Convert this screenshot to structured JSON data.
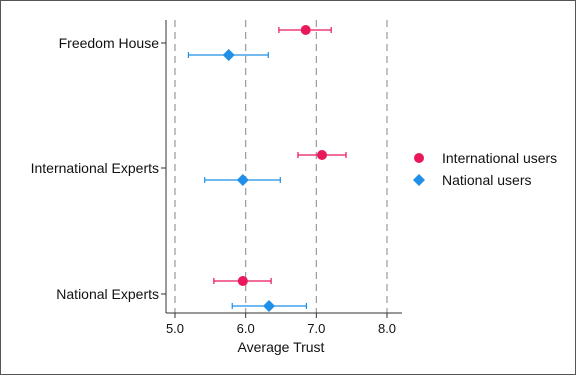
{
  "chart_data": {
    "type": "scatter",
    "orientation": "horizontal",
    "title": "",
    "xlabel": "Average Trust",
    "ylabel": "",
    "xlim": [
      4.9,
      8.1
    ],
    "xticks": [
      5.0,
      6.0,
      7.0,
      8.0
    ],
    "xtick_labels": [
      "5.0",
      "6.0",
      "7.0",
      "8.0"
    ],
    "grid": "vertical dashed at ticks",
    "categories": [
      "Freedom House",
      "International Experts",
      "National Experts"
    ],
    "legend_position": "right",
    "series": [
      {
        "name": "International users",
        "color": "#e8185a",
        "marker": "circle",
        "values": [
          6.85,
          7.08,
          5.96
        ],
        "ci_low": [
          6.47,
          6.74,
          5.55
        ],
        "ci_high": [
          7.21,
          7.42,
          6.36
        ]
      },
      {
        "name": "National users",
        "color": "#1f8fe8",
        "marker": "diamond",
        "values": [
          5.76,
          5.96,
          6.33
        ],
        "ci_low": [
          5.19,
          5.42,
          5.81
        ],
        "ci_high": [
          6.32,
          6.49,
          6.86
        ]
      }
    ]
  }
}
